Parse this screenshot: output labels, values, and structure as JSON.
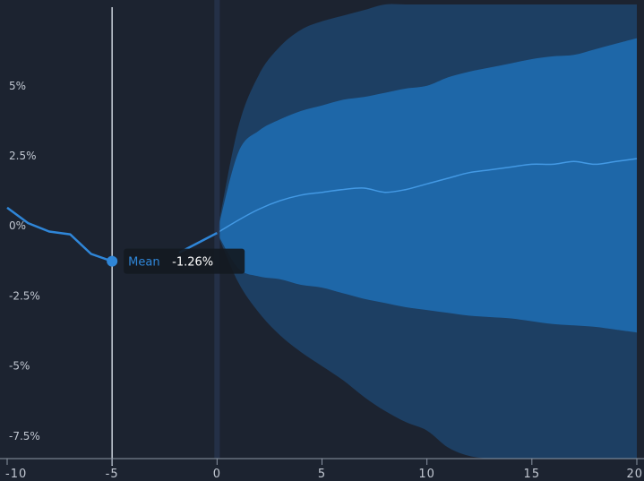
{
  "chart_data": {
    "type": "area",
    "x_ticks": [
      "-10",
      "-5",
      "0",
      "5",
      "10",
      "15",
      "20"
    ],
    "y_ticks": [
      {
        "value": 5,
        "label": "5%"
      },
      {
        "value": 2.5,
        "label": "2.5%"
      },
      {
        "value": 0,
        "label": "0%"
      },
      {
        "value": -2.5,
        "label": "-2.5%"
      },
      {
        "value": -5,
        "label": "-5%"
      },
      {
        "value": -7.5,
        "label": "-7.5%"
      }
    ],
    "xlim": [
      -10,
      20
    ],
    "ylim": [
      -8.3,
      7.9
    ],
    "history": {
      "x": [
        -10,
        -9,
        -8,
        -7,
        -6,
        -5
      ],
      "y": [
        0.65,
        0.1,
        -0.2,
        -0.3,
        -1.0,
        -1.26
      ]
    },
    "history_tail": {
      "x": [
        -1.8,
        0
      ],
      "y": [
        -0.95,
        -0.25
      ]
    },
    "forecast": {
      "x": [
        0,
        1,
        2,
        3,
        4,
        5,
        6,
        7,
        8,
        9,
        10,
        11,
        12,
        13,
        14,
        15,
        16,
        17,
        18,
        19,
        20
      ],
      "mean": [
        -0.25,
        0.2,
        0.6,
        0.9,
        1.1,
        1.2,
        1.3,
        1.35,
        1.2,
        1.3,
        1.5,
        1.7,
        1.9,
        2.0,
        2.1,
        2.2,
        2.2,
        2.3,
        2.2,
        2.3,
        2.4
      ],
      "inner_upper": [
        -0.25,
        2.6,
        3.4,
        3.8,
        4.1,
        4.3,
        4.5,
        4.6,
        4.75,
        4.9,
        5.0,
        5.3,
        5.5,
        5.65,
        5.8,
        5.95,
        6.05,
        6.1,
        6.3,
        6.5,
        6.7
      ],
      "inner_lower": [
        -0.25,
        -1.5,
        -1.8,
        -1.9,
        -2.1,
        -2.2,
        -2.4,
        -2.6,
        -2.75,
        -2.9,
        -3.0,
        -3.1,
        -3.2,
        -3.25,
        -3.3,
        -3.4,
        -3.5,
        -3.55,
        -3.6,
        -3.7,
        -3.8
      ],
      "outer_upper": [
        -0.25,
        3.5,
        5.4,
        6.4,
        7.0,
        7.3,
        7.5,
        7.7,
        7.9,
        8.0,
        8.0,
        8.0,
        8.0,
        8.0,
        8.0,
        8.0,
        8.0,
        8.0,
        8.0,
        8.0,
        8.0
      ],
      "outer_lower": [
        -0.25,
        -2.0,
        -3.1,
        -3.9,
        -4.5,
        -5.0,
        -5.5,
        -6.1,
        -6.6,
        -7.0,
        -7.3,
        -7.9,
        -8.2,
        -8.3,
        -8.4,
        -8.4,
        -8.4,
        -8.4,
        -8.4,
        -8.4,
        -8.4
      ]
    },
    "tooltip": {
      "x": -5,
      "series_label": "Mean",
      "value_label": "-1.26%"
    },
    "colors": {
      "background": "#1c2330",
      "outer_band": "#1d3f63",
      "inner_band": "#1e67a8",
      "mean_line": "#4aa2ef",
      "history_line": "#2f86d8",
      "axis_line": "#8d97a5",
      "crosshair": "#c9d0da",
      "zero_line": "#26324a"
    }
  }
}
